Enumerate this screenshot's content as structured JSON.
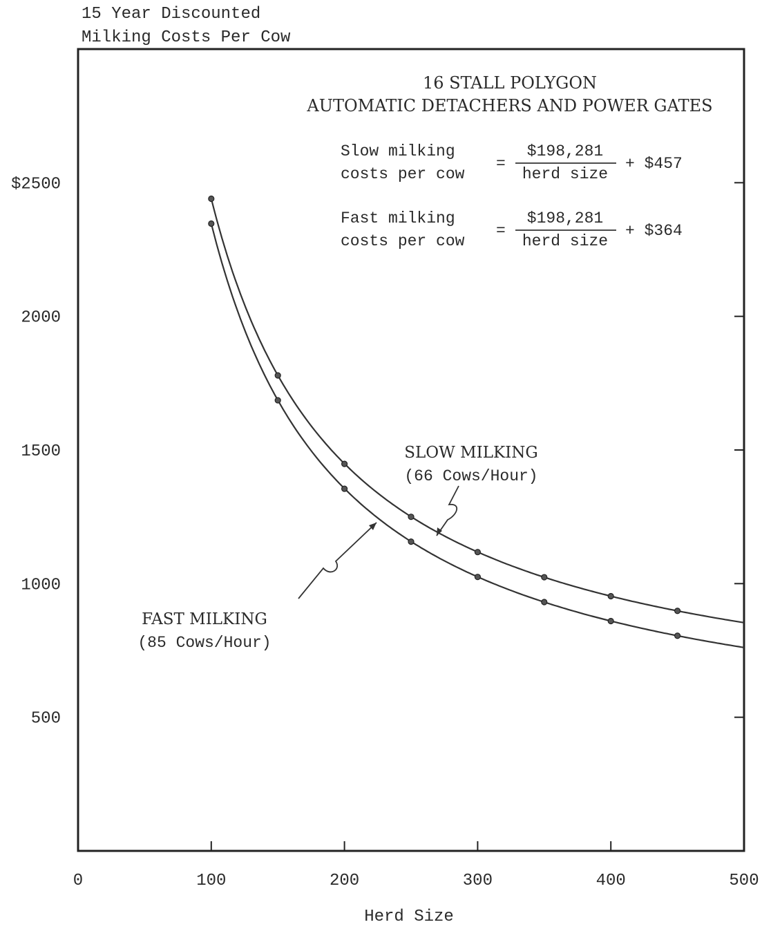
{
  "chart_data": {
    "type": "line",
    "title": "16 STALL POLYGON",
    "subtitle": "AUTOMATIC DETACHERS AND POWER GATES",
    "ylabel_line1": "15 Year Discounted",
    "ylabel_line2": "Milking Costs Per Cow",
    "xlabel": "Herd Size",
    "xlim": [
      0,
      500
    ],
    "ylim": [
      0,
      3000
    ],
    "xticks": [
      0,
      100,
      200,
      300,
      400,
      500
    ],
    "xtick_labels": [
      "0",
      "100",
      "200",
      "300",
      "400",
      "500"
    ],
    "yticks": [
      500,
      1000,
      1500,
      2000,
      2500
    ],
    "ytick_labels": [
      "500",
      "1000",
      "1500",
      "2000",
      "$2500"
    ],
    "formulas": [
      {
        "lhs_line1": "Slow milking",
        "lhs_line2": "costs per cow",
        "numerator": "$198,281",
        "denominator": "herd size",
        "constant": "+ $457"
      },
      {
        "lhs_line1": "Fast milking",
        "lhs_line2": "costs per cow",
        "numerator": "$198,281",
        "denominator": "herd size",
        "constant": "+ $364"
      }
    ],
    "series": [
      {
        "name": "SLOW MILKING",
        "name_line2": "(66 Cows/Hour)",
        "x": [
          100,
          150,
          200,
          250,
          300,
          350,
          400,
          450
        ],
        "y": [
          2440,
          1779,
          1448,
          1250,
          1118,
          1024,
          953,
          898
        ]
      },
      {
        "name": "FAST MILKING",
        "name_line2": "(85 Cows/Hour)",
        "x": [
          100,
          150,
          200,
          250,
          300,
          350,
          400,
          450
        ],
        "y": [
          2347,
          1686,
          1355,
          1157,
          1025,
          931,
          860,
          805
        ]
      }
    ],
    "grid": false
  }
}
